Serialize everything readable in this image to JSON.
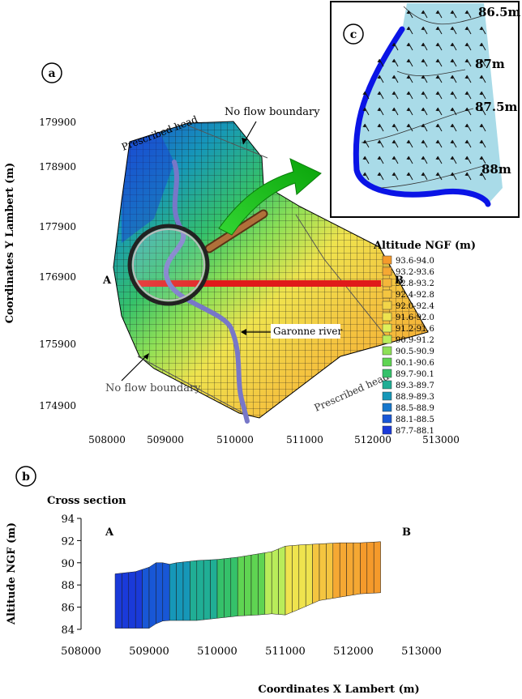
{
  "panel_labels": {
    "a": "a",
    "b": "b",
    "c": "c"
  },
  "map": {
    "y_axis_label": "Coordinates Y Lambert (m)",
    "y_ticks": [
      "179900",
      "178900",
      "177900",
      "176900",
      "175900",
      "174900"
    ],
    "x_ticks": [
      "508000",
      "509000",
      "510000",
      "511000",
      "512000",
      "513000"
    ],
    "annotations": {
      "no_flow_top": "No flow boundary",
      "prescribed_head_top": "Prescribed head",
      "no_flow_bottom": "No flow boundary",
      "prescribed_head_bottom": "Prescribed head",
      "garonne_river": "Garonne river",
      "point_a": "A",
      "point_b": "B"
    }
  },
  "legend": {
    "title": "Altitude NGF (m)",
    "items": [
      {
        "label": "93.6-94.0",
        "color": "#f59a2b"
      },
      {
        "label": "93.2-93.6",
        "color": "#f5a833"
      },
      {
        "label": "92.8-93.2",
        "color": "#f5b63a"
      },
      {
        "label": "92.4-92.8",
        "color": "#f4c540"
      },
      {
        "label": "92.0-92.4",
        "color": "#f3d548"
      },
      {
        "label": "91.6-92.0",
        "color": "#efe34e"
      },
      {
        "label": "91.2-91.6",
        "color": "#dff05a"
      },
      {
        "label": "90.9-91.2",
        "color": "#b9ec5a"
      },
      {
        "label": "90.5-90.9",
        "color": "#8ee056"
      },
      {
        "label": "90.1-90.6",
        "color": "#5fd452"
      },
      {
        "label": "89.7-90.1",
        "color": "#35c16a"
      },
      {
        "label": "89.3-89.7",
        "color": "#20ae95"
      },
      {
        "label": "88.9-89.3",
        "color": "#1697b8"
      },
      {
        "label": "88.5-88.9",
        "color": "#1677cc"
      },
      {
        "label": "88.1-88.5",
        "color": "#1857d6"
      },
      {
        "label": "87.7-88.1",
        "color": "#1a3ad9"
      }
    ]
  },
  "inset": {
    "contours": [
      "86.5m",
      "87m",
      "87.5m",
      "88m"
    ]
  },
  "chart_data": {
    "type": "area",
    "title": "Cross section",
    "xlabel": "Coordinates X Lambert (m)",
    "ylabel": "Altitude NGF (m)",
    "xlim": [
      508000,
      513000
    ],
    "ylim": [
      84,
      94
    ],
    "x_ticks": [
      "508000",
      "509000",
      "510000",
      "511000",
      "512000",
      "513000"
    ],
    "y_ticks": [
      "94",
      "92",
      "90",
      "88",
      "86",
      "84"
    ],
    "end_labels": {
      "left": "A",
      "right": "B"
    },
    "x": [
      508500,
      508800,
      509000,
      509150,
      509250,
      509400,
      509700,
      510000,
      510300,
      510600,
      510800,
      511000,
      511200,
      511500,
      511800,
      512100,
      512400
    ],
    "top": [
      89.0,
      89.2,
      89.6,
      90.2,
      89.8,
      90.0,
      90.2,
      90.3,
      90.5,
      90.8,
      91.0,
      91.5,
      91.6,
      91.7,
      91.8,
      91.8,
      91.9
    ],
    "bottom": [
      84.1,
      84.1,
      84.1,
      84.7,
      84.8,
      84.8,
      84.8,
      85.0,
      85.2,
      85.3,
      85.4,
      85.3,
      85.8,
      86.6,
      86.9,
      87.2,
      87.3
    ],
    "color_stops": [
      "#1a3ad9",
      "#1857d6",
      "#1697b8",
      "#20ae95",
      "#35c16a",
      "#5fd452",
      "#b9ec5a",
      "#efe34e",
      "#f4c540",
      "#f5a833",
      "#f59a2b"
    ]
  }
}
